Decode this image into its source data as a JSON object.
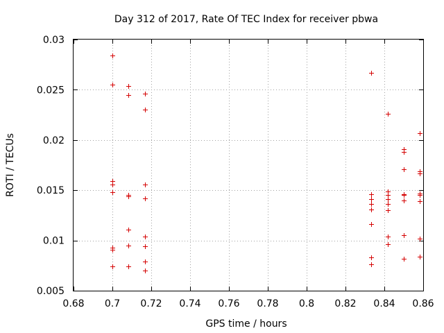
{
  "chart_data": {
    "type": "scatter",
    "title": "Day 312 of 2017, Rate Of TEC Index for receiver pbwa",
    "xlabel": "GPS time / hours",
    "ylabel": "ROTI / TECUs",
    "xlim": [
      0.68,
      0.86
    ],
    "ylim": [
      0.005,
      0.03
    ],
    "xticks": [
      0.68,
      0.7,
      0.72,
      0.74,
      0.76,
      0.78,
      0.8,
      0.82,
      0.84,
      0.86
    ],
    "xtick_labels": [
      "0.68",
      "0.7",
      "0.72",
      "0.74",
      "0.76",
      "0.78",
      "0.8",
      "0.82",
      "0.84",
      "0.86"
    ],
    "yticks": [
      0.005,
      0.01,
      0.015,
      0.02,
      0.025,
      0.03
    ],
    "ytick_labels": [
      "0.005",
      "0.01",
      "0.015",
      "0.02",
      "0.025",
      "0.03"
    ],
    "grid": true,
    "marker": "+",
    "color": "#d40000",
    "series": [
      {
        "name": "pbwa",
        "points": [
          [
            0.7,
            0.0284
          ],
          [
            0.7,
            0.0255
          ],
          [
            0.7,
            0.0159
          ],
          [
            0.7,
            0.0156
          ],
          [
            0.7,
            0.0148
          ],
          [
            0.7,
            0.0093
          ],
          [
            0.7,
            0.0091
          ],
          [
            0.7,
            0.0074
          ],
          [
            0.7083,
            0.0254
          ],
          [
            0.7083,
            0.0245
          ],
          [
            0.7083,
            0.0145
          ],
          [
            0.7083,
            0.0144
          ],
          [
            0.7083,
            0.0111
          ],
          [
            0.7083,
            0.0095
          ],
          [
            0.7083,
            0.0074
          ],
          [
            0.7167,
            0.0246
          ],
          [
            0.7167,
            0.023
          ],
          [
            0.7167,
            0.0156
          ],
          [
            0.7167,
            0.0142
          ],
          [
            0.7167,
            0.0104
          ],
          [
            0.7167,
            0.0094
          ],
          [
            0.7167,
            0.0079
          ],
          [
            0.7167,
            0.007
          ],
          [
            0.8333,
            0.0267
          ],
          [
            0.8333,
            0.0146
          ],
          [
            0.8333,
            0.0141
          ],
          [
            0.8333,
            0.0136
          ],
          [
            0.8333,
            0.0131
          ],
          [
            0.8333,
            0.0116
          ],
          [
            0.8333,
            0.0083
          ],
          [
            0.8333,
            0.0076
          ],
          [
            0.8417,
            0.0226
          ],
          [
            0.8417,
            0.0149
          ],
          [
            0.8417,
            0.0145
          ],
          [
            0.8417,
            0.0141
          ],
          [
            0.8417,
            0.0136
          ],
          [
            0.8417,
            0.013
          ],
          [
            0.8417,
            0.0104
          ],
          [
            0.8417,
            0.0096
          ],
          [
            0.85,
            0.0191
          ],
          [
            0.85,
            0.0188
          ],
          [
            0.85,
            0.0171
          ],
          [
            0.85,
            0.0146
          ],
          [
            0.85,
            0.0145
          ],
          [
            0.85,
            0.014
          ],
          [
            0.85,
            0.0105
          ],
          [
            0.85,
            0.0082
          ],
          [
            0.8583,
            0.0207
          ],
          [
            0.8583,
            0.0169
          ],
          [
            0.8583,
            0.0167
          ],
          [
            0.8583,
            0.0147
          ],
          [
            0.8583,
            0.0145
          ],
          [
            0.8583,
            0.0139
          ],
          [
            0.8583,
            0.0102
          ],
          [
            0.8583,
            0.0084
          ]
        ]
      }
    ]
  }
}
